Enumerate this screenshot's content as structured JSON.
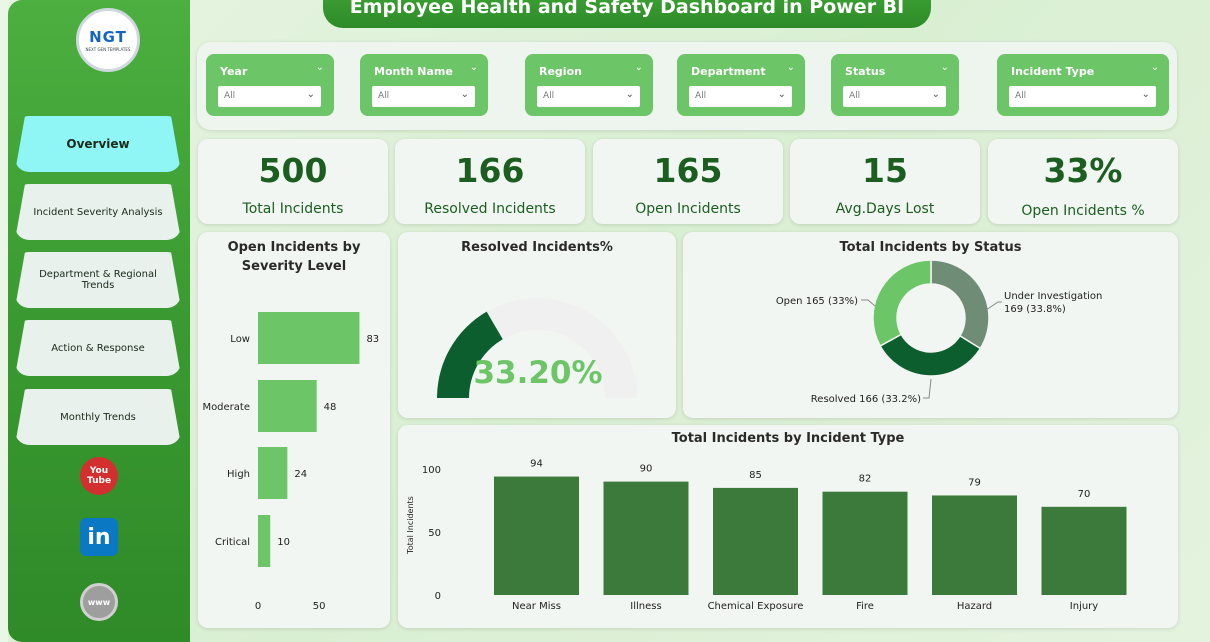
{
  "title": "Employee Health and Safety Dashboard in Power BI",
  "logo": {
    "text": "NGT",
    "subtext": "NEXT GEN TEMPLATES"
  },
  "nav": [
    {
      "label": "Overview",
      "active": true
    },
    {
      "label": "Incident Severity Analysis",
      "active": false
    },
    {
      "label": "Department & Regional Trends",
      "active": false
    },
    {
      "label": "Action & Response",
      "active": false
    },
    {
      "label": "Monthly Trends",
      "active": false
    }
  ],
  "social": {
    "youtube_top": "You",
    "youtube_bottom": "Tube",
    "linkedin": "in",
    "web": "www"
  },
  "filters": [
    {
      "label": "Year",
      "value": "All"
    },
    {
      "label": "Month Name",
      "value": "All"
    },
    {
      "label": "Region",
      "value": "All"
    },
    {
      "label": "Department",
      "value": "All"
    },
    {
      "label": "Status",
      "value": "All"
    },
    {
      "label": "Incident Type",
      "value": "All"
    }
  ],
  "kpis": [
    {
      "value": "500",
      "label": "Total Incidents"
    },
    {
      "value": "166",
      "label": "Resolved Incidents"
    },
    {
      "value": "165",
      "label": "Open Incidents"
    },
    {
      "value": "15",
      "label": "Avg.Days Lost"
    },
    {
      "value": "33%",
      "label": "Open Incidents %"
    }
  ],
  "colors": {
    "accent": "#4caf3f",
    "bar_light": "#6cc566",
    "bar_dark": "#3c7a3c",
    "gauge_fill": "#0d5e2e",
    "gauge_text": "#6cc566",
    "donut_open": "#6cc566",
    "donut_resolved": "#0d5e2e",
    "donut_investigation": "#6f8c76"
  },
  "chart_data": [
    {
      "type": "bar",
      "orientation": "horizontal",
      "title": "Open Incidents by Severity Level",
      "categories": [
        "Low",
        "Moderate",
        "High",
        "Critical"
      ],
      "values": [
        83,
        48,
        24,
        10
      ],
      "xticks": [
        "0",
        "50"
      ],
      "xlim": [
        0,
        90
      ]
    },
    {
      "type": "gauge",
      "title": "Resolved Incidents%",
      "value": 33.2,
      "display": "33.20%",
      "max": 100
    },
    {
      "type": "pie",
      "title": "Total Incidents by Status",
      "slices": [
        {
          "name": "Under Investigation",
          "value": 169,
          "label_line1": "Under Investigation",
          "label_line2": "169 (33.8%)"
        },
        {
          "name": "Resolved",
          "value": 166,
          "label_line1": "Resolved 166 (33.2%)",
          "label_line2": ""
        },
        {
          "name": "Open",
          "value": 165,
          "label_line1": "Open 165 (33%)",
          "label_line2": ""
        }
      ]
    },
    {
      "type": "bar",
      "orientation": "vertical",
      "title": "Total Incidents by Incident Type",
      "ylabel": "Total Incidents",
      "categories": [
        "Near Miss",
        "Illness",
        "Chemical Exposure",
        "Fire",
        "Hazard",
        "Injury"
      ],
      "values": [
        94,
        90,
        85,
        82,
        79,
        70
      ],
      "yticks": [
        "0",
        "50",
        "100"
      ],
      "ylim": [
        0,
        100
      ]
    }
  ]
}
